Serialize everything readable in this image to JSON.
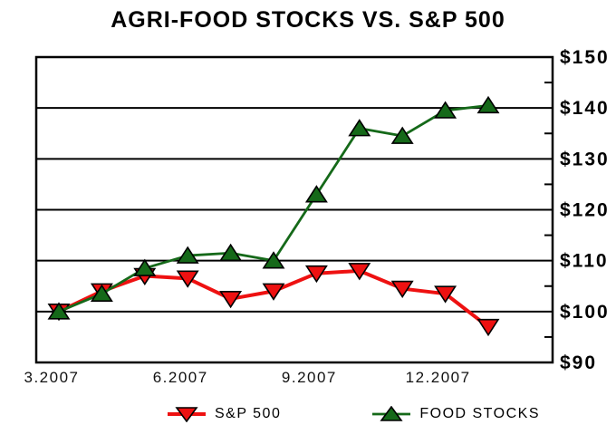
{
  "title": "AGRI-FOOD STOCKS VS. S&P 500",
  "chart_data": {
    "type": "line",
    "title": "AGRI-FOOD STOCKS VS. S&P 500",
    "x": [
      "3.2007",
      "4.2007",
      "5.2007",
      "6.2007",
      "7.2007",
      "8.2007",
      "9.2007",
      "10.2007",
      "11.2007",
      "12.2007",
      "1.2008"
    ],
    "x_tick_labels": [
      "3.2007",
      "6.2007",
      "9.2007",
      "12.2007"
    ],
    "x_tick_indices": [
      0,
      3,
      6,
      9
    ],
    "ylim": [
      90,
      150
    ],
    "y_ticks": [
      90,
      100,
      110,
      120,
      130,
      140,
      150
    ],
    "y_tick_labels": [
      "$90",
      "$100",
      "$110",
      "$120",
      "$130",
      "$140",
      "$150"
    ],
    "y_minor_ticks": [
      95,
      105,
      115,
      125,
      135,
      145
    ],
    "y_axis_side": "right",
    "grid": "horizontal-major",
    "legend_position": "bottom",
    "frame_color": "#000000",
    "series": [
      {
        "name": "S&P 500",
        "marker": "triangle-down",
        "color": "#ee1111",
        "values": [
          100,
          104,
          107,
          106.5,
          102.5,
          104,
          107.5,
          108,
          104.5,
          103.5,
          97
        ]
      },
      {
        "name": "FOOD STOCKS",
        "marker": "triangle-up",
        "color": "#156919",
        "values": [
          100,
          103.5,
          108.5,
          111,
          111.5,
          110,
          123,
          136,
          134.5,
          139.5,
          140.5
        ]
      }
    ]
  },
  "legend": {
    "items": [
      {
        "label": "S&P 500"
      },
      {
        "label": "FOOD STOCKS"
      }
    ]
  }
}
